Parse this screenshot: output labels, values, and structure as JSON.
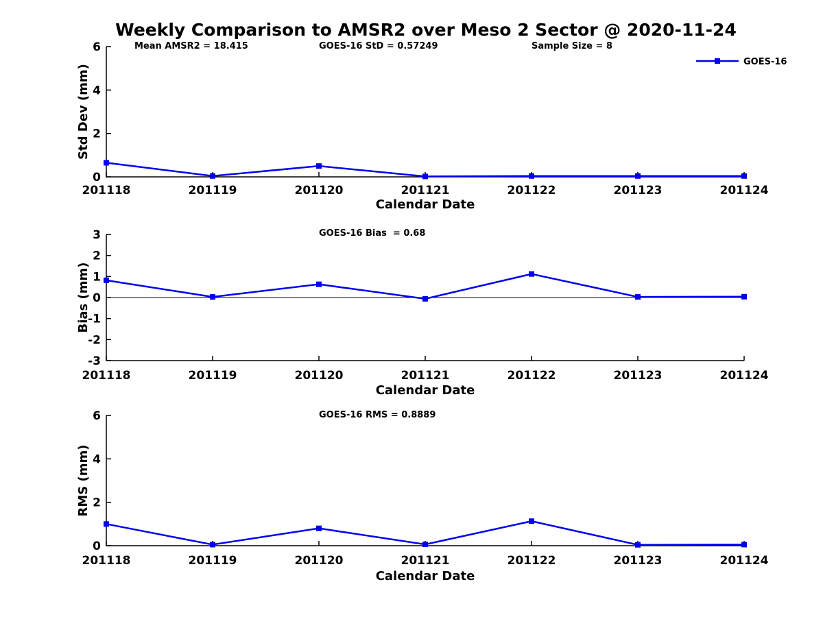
{
  "title": "Weekly Comparison to AMSR2 over Meso 2 Sector @ 2020-11-24",
  "legend": {
    "label": "GOES-16",
    "marker": "square-icon"
  },
  "colors": {
    "line": "#0000EE",
    "axis": "#000000",
    "background": "#FFFFFF",
    "text": "#000000"
  },
  "chart_data": [
    {
      "type": "line",
      "name": "std-dev-vs-date",
      "categories": [
        "201118",
        "201119",
        "201120",
        "201121",
        "201122",
        "201123",
        "201124"
      ],
      "series": [
        {
          "name": "GOES-16",
          "values": [
            0.65,
            0.04,
            0.5,
            0.02,
            0.04,
            0.04,
            0.04
          ]
        }
      ],
      "xlabel": "Calendar Date",
      "ylabel": "Std Dev (mm)",
      "ylim": [
        0,
        6
      ],
      "yticks": [
        0,
        2,
        4,
        6
      ],
      "grid": false,
      "zero_line": false,
      "legend_position": "upper-right-outside-line",
      "annotations": [
        "Mean AMSR2 = 18.415",
        "GOES-16 StD = 0.57249",
        "Sample Size = 8"
      ]
    },
    {
      "type": "line",
      "name": "bias-vs-date",
      "categories": [
        "201118",
        "201119",
        "201120",
        "201121",
        "201122",
        "201123",
        "201124"
      ],
      "series": [
        {
          "name": "GOES-16",
          "values": [
            0.82,
            0.03,
            0.63,
            -0.06,
            1.12,
            0.03,
            0.04
          ]
        }
      ],
      "xlabel": "Calendar Date",
      "ylabel": "Bias (mm)",
      "ylim": [
        -3,
        3
      ],
      "yticks": [
        -3,
        -2,
        -1,
        0,
        1,
        2,
        3
      ],
      "grid": false,
      "zero_line": true,
      "annotations": [
        "GOES-16 Bias  = 0.68"
      ]
    },
    {
      "type": "line",
      "name": "rms-vs-date",
      "categories": [
        "201118",
        "201119",
        "201120",
        "201121",
        "201122",
        "201123",
        "201124"
      ],
      "series": [
        {
          "name": "GOES-16",
          "values": [
            1.0,
            0.05,
            0.8,
            0.06,
            1.13,
            0.04,
            0.05
          ]
        }
      ],
      "xlabel": "Calendar Date",
      "ylabel": "RMS (mm)",
      "ylim": [
        0,
        6
      ],
      "yticks": [
        0,
        2,
        4,
        6
      ],
      "grid": false,
      "zero_line": false,
      "annotations": [
        "GOES-16 RMS = 0.8889"
      ]
    }
  ]
}
